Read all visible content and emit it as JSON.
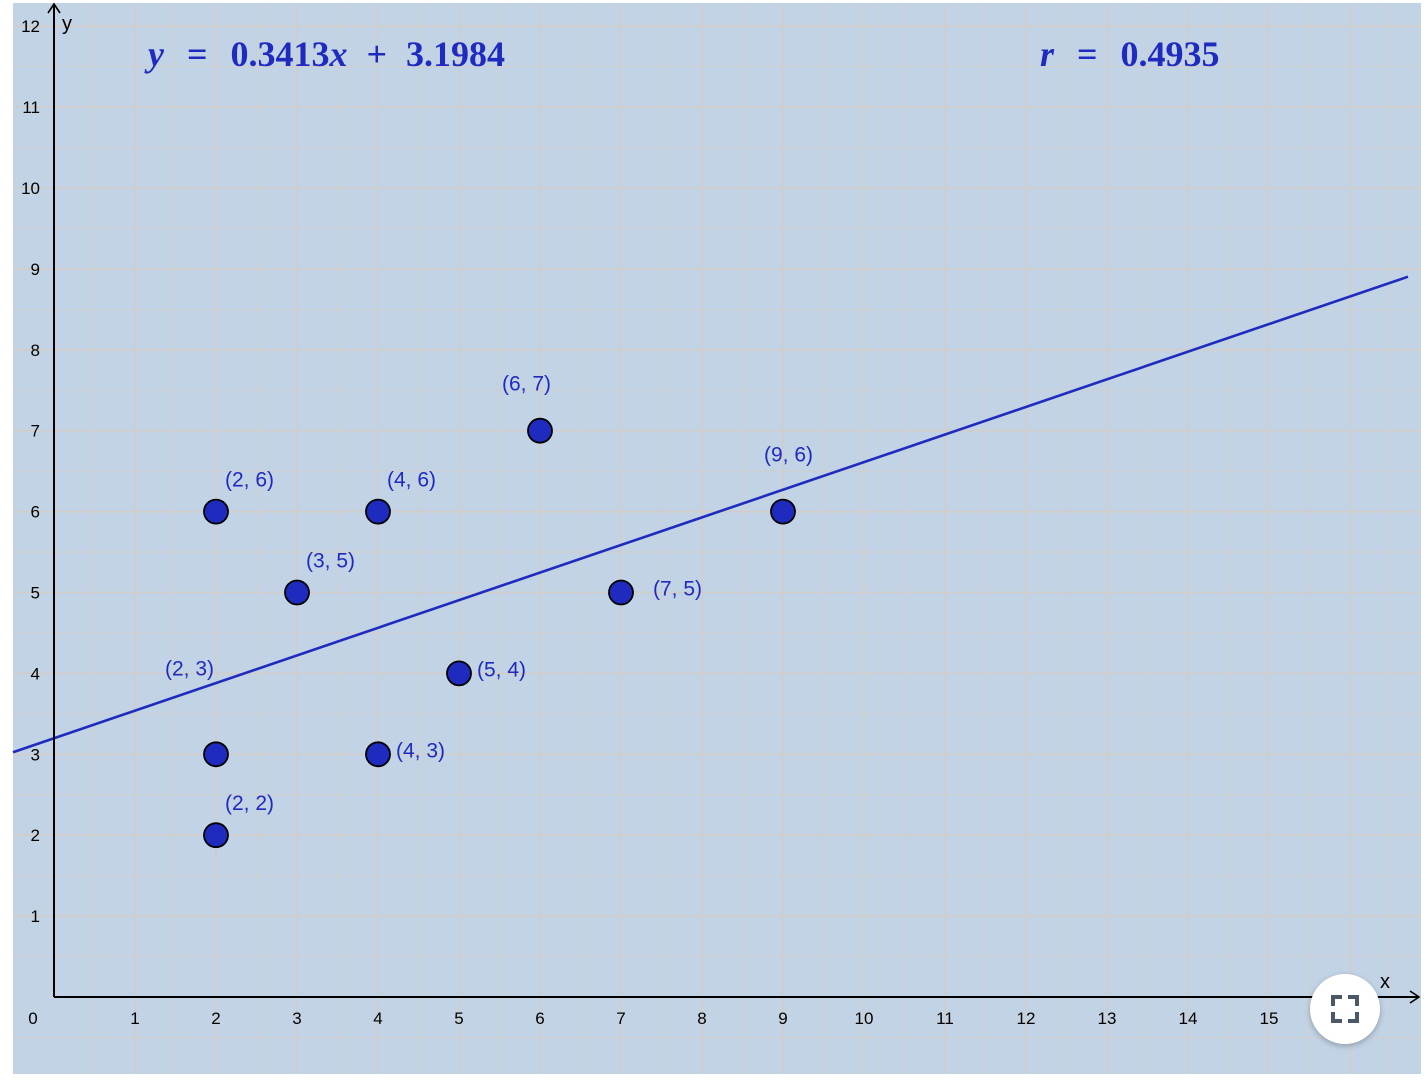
{
  "chart_data": {
    "type": "scatter",
    "x_axis_label": "x",
    "y_axis_label": "y",
    "xlim": [
      0,
      15
    ],
    "ylim": [
      0,
      12
    ],
    "x_ticks": [
      "0",
      "1",
      "2",
      "3",
      "4",
      "5",
      "6",
      "7",
      "8",
      "9",
      "10",
      "11",
      "12",
      "13",
      "14",
      "15"
    ],
    "y_ticks": [
      "1",
      "2",
      "3",
      "4",
      "5",
      "6",
      "7",
      "8",
      "9",
      "10",
      "11",
      "12"
    ],
    "grid": true,
    "points": [
      {
        "x": 2,
        "y": 6,
        "label": "(2, 6)",
        "label_side": "top"
      },
      {
        "x": 4,
        "y": 6,
        "label": "(4, 6)",
        "label_side": "top"
      },
      {
        "x": 6,
        "y": 7,
        "label": "(6, 7)",
        "label_side": "top"
      },
      {
        "x": 3,
        "y": 5,
        "label": "(3, 5)",
        "label_side": "top"
      },
      {
        "x": 9,
        "y": 6,
        "label": "(9, 6)",
        "label_side": "top"
      },
      {
        "x": 7,
        "y": 5,
        "label": "(7, 5)",
        "label_side": "right"
      },
      {
        "x": 5,
        "y": 4,
        "label": "(5, 4)",
        "label_side": "right"
      },
      {
        "x": 2,
        "y": 3,
        "label": "(2, 3)",
        "label_side": "upper-left"
      },
      {
        "x": 4,
        "y": 3,
        "label": "(4, 3)",
        "label_side": "right"
      },
      {
        "x": 2,
        "y": 2,
        "label": "(2, 2)",
        "label_side": "top"
      }
    ],
    "regression": {
      "slope": 0.3413,
      "intercept": 3.1984
    },
    "equation_text": {
      "y": "y",
      "eq": "=",
      "slope": "0.3413",
      "x": "x",
      "plus": "+",
      "intercept": "3.1984"
    },
    "r_text": {
      "r": "r",
      "eq": "=",
      "value": "0.4935"
    }
  },
  "colors": {
    "background": "#c1d3e5",
    "grid": "#d2cdc8",
    "point_fill": "#1f2bbf",
    "line": "#1f2bbf",
    "text": "#1f2bbf"
  },
  "icons": {
    "fullscreen": "expand-icon"
  }
}
